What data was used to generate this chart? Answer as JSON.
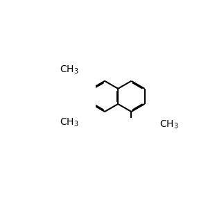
{
  "bond_color": "#000000",
  "oxygen_color": "#ff0000",
  "text_color": "#000000",
  "bg_color": "#ffffff",
  "line_width": 1.5,
  "font_size": 10,
  "sub_font_size": 7.5,
  "figsize": [
    3.0,
    3.0
  ],
  "dpi": 100
}
